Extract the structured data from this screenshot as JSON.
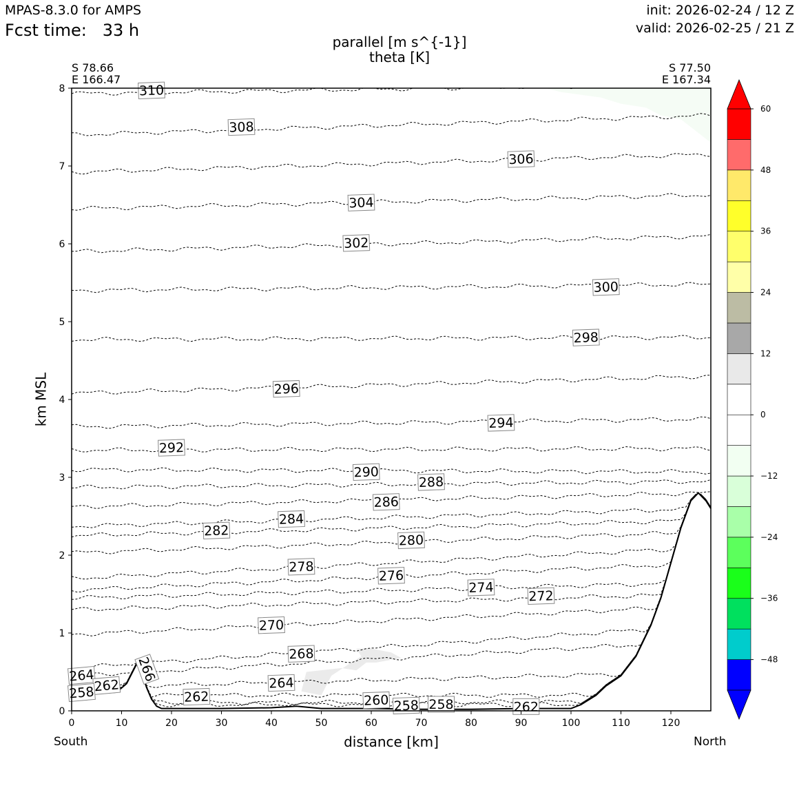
{
  "header": {
    "model": "MPAS-8.3.0 for AMPS",
    "fcst_label": "Fcst time:",
    "fcst_value": "33 h",
    "init": "init: 2026-02-24 / 12 Z",
    "valid": "valid: 2026-02-25 / 21 Z"
  },
  "endpoints": {
    "start_lat": "S 78.66",
    "start_lon": "E 166.47",
    "end_lat": "S 77.50",
    "end_lon": "E 167.34",
    "left_label": "South",
    "right_label": "North"
  },
  "chart_data": {
    "type": "contour",
    "title": "parallel [m s^{-1}]",
    "subtitle": "theta [K]",
    "xlabel": "distance [km]",
    "ylabel": "km MSL",
    "xlim": [
      0,
      128
    ],
    "ylim": [
      0,
      8
    ],
    "xticks": [
      0,
      10,
      20,
      30,
      40,
      50,
      60,
      70,
      80,
      90,
      100,
      110,
      120
    ],
    "yticks": [
      0,
      1,
      2,
      3,
      4,
      5,
      6,
      7,
      8
    ],
    "grid": false,
    "terrain": [
      [
        0,
        0.25
      ],
      [
        5,
        0.22
      ],
      [
        9,
        0.24
      ],
      [
        11,
        0.35
      ],
      [
        13,
        0.6
      ],
      [
        14,
        0.5
      ],
      [
        15,
        0.3
      ],
      [
        16,
        0.15
      ],
      [
        17,
        0.06
      ],
      [
        18,
        0.03
      ],
      [
        30,
        0.03
      ],
      [
        40,
        0.04
      ],
      [
        45,
        0.06
      ],
      [
        50,
        0.03
      ],
      [
        60,
        0.03
      ],
      [
        70,
        0.02
      ],
      [
        80,
        0.02
      ],
      [
        90,
        0.03
      ],
      [
        100,
        0.03
      ],
      [
        102,
        0.08
      ],
      [
        105,
        0.2
      ],
      [
        107,
        0.32
      ],
      [
        110,
        0.45
      ],
      [
        113,
        0.7
      ],
      [
        116,
        1.1
      ],
      [
        118,
        1.45
      ],
      [
        120,
        1.9
      ],
      [
        122,
        2.35
      ],
      [
        124,
        2.7
      ],
      [
        125.5,
        2.8
      ],
      [
        127,
        2.7
      ],
      [
        128,
        2.6
      ]
    ],
    "theta_contours": [
      {
        "level": "310",
        "y0": 7.93,
        "y1": 8.05,
        "label_x": 16
      },
      {
        "level": "308",
        "y0": 7.4,
        "y1": 7.65,
        "label_x": 34
      },
      {
        "level": "306",
        "y0": 6.92,
        "y1": 7.15,
        "label_x": 90
      },
      {
        "level": "304",
        "y0": 6.45,
        "y1": 6.63,
        "label_x": 58
      },
      {
        "level": "302",
        "y0": 5.9,
        "y1": 6.1,
        "label_x": 57
      },
      {
        "level": "300",
        "y0": 5.4,
        "y1": 5.48,
        "label_x": 107
      },
      {
        "level": "298",
        "y0": 4.77,
        "y1": 4.8,
        "label_x": 103
      },
      {
        "level": "296",
        "y0": 4.08,
        "y1": 4.3,
        "label_x": 43
      },
      {
        "level": "294",
        "y0": 3.65,
        "y1": 3.75,
        "label_x": 86
      },
      {
        "level": "292",
        "y0": 3.35,
        "y1": 3.37,
        "label_x": 20
      },
      {
        "level": "290",
        "y0": 3.1,
        "y1": 3.07,
        "label_x": 59
      },
      {
        "level": "288",
        "y0": 2.87,
        "y1": 2.95,
        "label_x": 72
      },
      {
        "level": "286",
        "y0": 2.62,
        "y1": 2.8,
        "label_x": 63
      },
      {
        "level": "284",
        "y0": 2.37,
        "y1": 2.6,
        "label_x": 44
      },
      {
        "level": "282",
        "y0": 2.25,
        "y1": 2.45,
        "label_x": 29
      },
      {
        "level": "280",
        "y0": 2.03,
        "y1": 2.3,
        "label_x": 68
      },
      {
        "level": "278",
        "y0": 1.7,
        "y1": 2.1,
        "label_x": 46
      },
      {
        "level": "276",
        "y0": 1.55,
        "y1": 1.9,
        "label_x": 64
      },
      {
        "level": "274",
        "y0": 1.45,
        "y1": 1.65,
        "label_x": 82
      },
      {
        "level": "272",
        "y0": 1.3,
        "y1": 1.5,
        "label_x": 94
      },
      {
        "level": "270",
        "y0": 0.98,
        "y1": 1.35,
        "label_x": 40
      },
      {
        "level": "268",
        "y0": 0.55,
        "y1": 1.1,
        "label_x": 46
      },
      {
        "level": "266",
        "y0": 0.45,
        "y1": 0.9,
        "label_x": 15
      },
      {
        "level": "264",
        "y0": 0.3,
        "y1": 0.5,
        "label_x": 42
      },
      {
        "level": "262",
        "y0": 0.2,
        "y1": 0.2,
        "label_x": 25
      },
      {
        "level": "260",
        "y0": 0.1,
        "y1": 0.12,
        "label_x": 61
      },
      {
        "level": "258",
        "y0": 0.08,
        "y1": 0.08,
        "label_x": 67
      }
    ],
    "extra_labels": [
      {
        "text": "264",
        "x": 2,
        "y": 0.45,
        "rot": -5
      },
      {
        "text": "262",
        "x": 7,
        "y": 0.32,
        "rot": -5
      },
      {
        "text": "258",
        "x": 2,
        "y": 0.23,
        "rot": -5
      },
      {
        "text": "262",
        "x": 91,
        "y": 0.05,
        "rot": 0
      },
      {
        "text": "258",
        "x": 74,
        "y": 0.08,
        "rot": 0
      }
    ],
    "shading": [
      {
        "color": "#ebebeb",
        "points": [
          [
            47,
            0.5
          ],
          [
            54,
            0.55
          ],
          [
            57,
            0.52
          ],
          [
            59,
            0.62
          ],
          [
            61,
            0.62
          ],
          [
            66,
            0.68
          ],
          [
            64,
            0.75
          ],
          [
            60,
            0.8
          ],
          [
            57,
            0.8
          ],
          [
            58,
            0.7
          ],
          [
            56,
            0.62
          ],
          [
            52,
            0.45
          ],
          [
            50,
            0.2
          ],
          [
            46,
            0.25
          ],
          [
            47,
            0.5
          ]
        ]
      },
      {
        "color": "#f5fcf5",
        "points": [
          [
            95,
            8
          ],
          [
            128,
            8
          ],
          [
            128,
            7.3
          ],
          [
            122,
            7.6
          ],
          [
            118,
            7.65
          ],
          [
            115,
            7.75
          ],
          [
            110,
            7.8
          ],
          [
            106,
            7.88
          ],
          [
            98,
            7.95
          ],
          [
            95,
            8
          ]
        ]
      }
    ],
    "colorbar": {
      "colors": [
        "#0000ff",
        "#00cccc",
        "#00e05e",
        "#1aff1a",
        "#5cff5c",
        "#a9ffa9",
        "#d9ffd9",
        "#f2fff2",
        "#ffffff",
        "#ffffff",
        "#e9e9e9",
        "#a8a8a8",
        "#bcbca4",
        "#ffffa8",
        "#ffff6b",
        "#ffff2a",
        "#ffe96a",
        "#ff6b6b",
        "#ff0000"
      ],
      "under_color": "#0000ff",
      "over_color": "#ff0000",
      "tick_labels": [
        "60",
        "48",
        "36",
        "24",
        "12",
        "0",
        "−12",
        "−24",
        "−36",
        "−48"
      ]
    }
  }
}
